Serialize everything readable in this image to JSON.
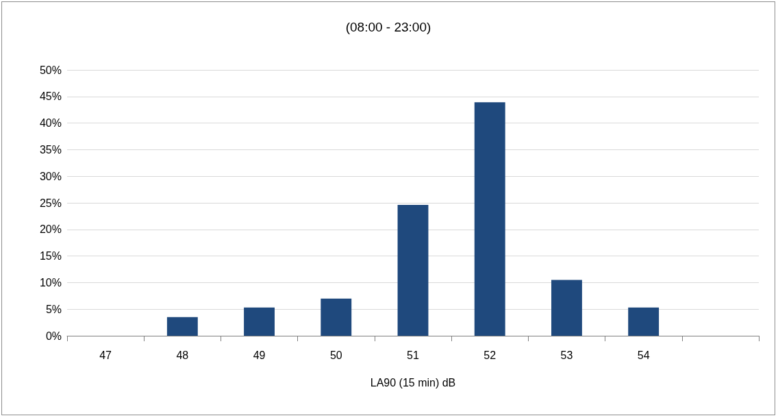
{
  "chart_data": {
    "type": "bar",
    "title": "(08:00 - 23:00)",
    "xlabel": "LA90 (15 min) dB",
    "categories": [
      "47",
      "48",
      "49",
      "50",
      "51",
      "52",
      "53",
      "54",
      null
    ],
    "values": [
      null,
      3.5,
      5.3,
      7.0,
      24.6,
      43.9,
      10.5,
      5.3,
      null
    ],
    "color": "#1f497d",
    "ylim": [
      0,
      50
    ],
    "yticks": [
      {
        "value": 0,
        "label": "0%"
      },
      {
        "value": 5,
        "label": "5%"
      },
      {
        "value": 10,
        "label": "10%"
      },
      {
        "value": 15,
        "label": "15%"
      },
      {
        "value": 20,
        "label": "20%"
      },
      {
        "value": 25,
        "label": "25%"
      },
      {
        "value": 30,
        "label": "30%"
      },
      {
        "value": 35,
        "label": "35%"
      },
      {
        "value": 40,
        "label": "40%"
      },
      {
        "value": 45,
        "label": "45%"
      },
      {
        "value": 50,
        "label": "50%"
      }
    ],
    "grid": "y"
  }
}
